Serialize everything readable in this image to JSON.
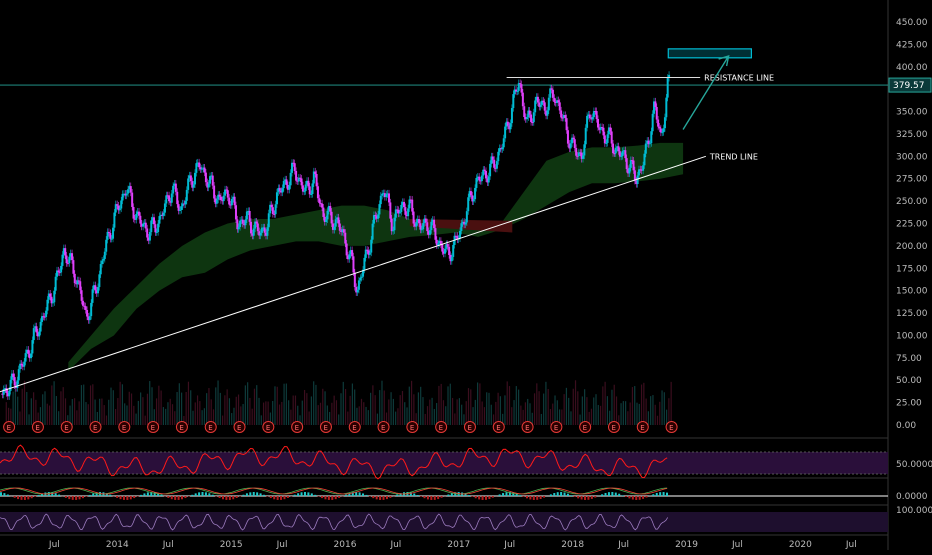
{
  "chart_data": {
    "type": "candlestick",
    "price_axis": {
      "ticks": [
        0,
        25,
        50,
        75,
        100,
        125,
        150,
        175,
        200,
        225,
        250,
        275,
        300,
        325,
        350,
        375,
        400,
        425,
        450
      ],
      "tick_labels": [
        "0.00",
        "25.00",
        "50.00",
        "75.00",
        "100.00",
        "125.00",
        "150.00",
        "175.00",
        "200.00",
        "225.00",
        "250.00",
        "275.00",
        "300.00",
        "325.00",
        "350.00",
        "375.00",
        "400.00",
        "425.00",
        "450.00"
      ],
      "last_price_label": "379.57",
      "last_price": 379.57
    },
    "time_axis": {
      "labels": [
        "Jul",
        "2014",
        "Jul",
        "2015",
        "Jul",
        "2016",
        "Jul",
        "2017",
        "Jul",
        "2018",
        "Jul",
        "2019",
        "Jul",
        "2020",
        "Jul"
      ],
      "start": 2013.0,
      "end": 2020.8
    },
    "price_series": [
      [
        2013.0,
        35
      ],
      [
        2013.1,
        45
      ],
      [
        2013.2,
        70
      ],
      [
        2013.3,
        100
      ],
      [
        2013.4,
        130
      ],
      [
        2013.5,
        165
      ],
      [
        2013.55,
        195
      ],
      [
        2013.65,
        170
      ],
      [
        2013.75,
        120
      ],
      [
        2013.83,
        150
      ],
      [
        2013.92,
        200
      ],
      [
        2014.02,
        240
      ],
      [
        2014.1,
        265
      ],
      [
        2014.2,
        230
      ],
      [
        2014.3,
        215
      ],
      [
        2014.4,
        230
      ],
      [
        2014.5,
        265
      ],
      [
        2014.58,
        240
      ],
      [
        2014.67,
        275
      ],
      [
        2014.75,
        290
      ],
      [
        2014.83,
        270
      ],
      [
        2014.92,
        250
      ],
      [
        2015.0,
        260
      ],
      [
        2015.08,
        225
      ],
      [
        2015.17,
        230
      ],
      [
        2015.25,
        215
      ],
      [
        2015.33,
        220
      ],
      [
        2015.42,
        255
      ],
      [
        2015.5,
        270
      ],
      [
        2015.58,
        285
      ],
      [
        2015.67,
        260
      ],
      [
        2015.75,
        275
      ],
      [
        2015.83,
        235
      ],
      [
        2015.92,
        230
      ],
      [
        2016.0,
        215
      ],
      [
        2016.08,
        180
      ],
      [
        2016.13,
        150
      ],
      [
        2016.2,
        185
      ],
      [
        2016.28,
        225
      ],
      [
        2016.36,
        265
      ],
      [
        2016.44,
        225
      ],
      [
        2016.52,
        245
      ],
      [
        2016.6,
        240
      ],
      [
        2016.68,
        220
      ],
      [
        2016.76,
        225
      ],
      [
        2016.84,
        205
      ],
      [
        2016.92,
        190
      ],
      [
        2017.0,
        205
      ],
      [
        2017.08,
        235
      ],
      [
        2017.17,
        270
      ],
      [
        2017.25,
        280
      ],
      [
        2017.33,
        290
      ],
      [
        2017.42,
        320
      ],
      [
        2017.5,
        360
      ],
      [
        2017.55,
        385
      ],
      [
        2017.62,
        335
      ],
      [
        2017.7,
        360
      ],
      [
        2017.78,
        355
      ],
      [
        2017.86,
        370
      ],
      [
        2017.94,
        340
      ],
      [
        2018.02,
        310
      ],
      [
        2018.1,
        300
      ],
      [
        2018.18,
        355
      ],
      [
        2018.26,
        330
      ],
      [
        2018.34,
        320
      ],
      [
        2018.42,
        305
      ],
      [
        2018.5,
        295
      ],
      [
        2018.58,
        275
      ],
      [
        2018.66,
        300
      ],
      [
        2018.74,
        355
      ],
      [
        2018.8,
        320
      ],
      [
        2018.86,
        380
      ]
    ],
    "cloud": [
      [
        2013.6,
        60,
        70
      ],
      [
        2013.8,
        85,
        100
      ],
      [
        2014.0,
        100,
        130
      ],
      [
        2014.2,
        130,
        155
      ],
      [
        2014.4,
        150,
        180
      ],
      [
        2014.6,
        165,
        200
      ],
      [
        2014.8,
        170,
        215
      ],
      [
        2015.0,
        185,
        225
      ],
      [
        2015.2,
        195,
        230
      ],
      [
        2015.4,
        200,
        230
      ],
      [
        2015.6,
        205,
        235
      ],
      [
        2015.8,
        205,
        240
      ],
      [
        2016.0,
        200,
        245
      ],
      [
        2016.2,
        200,
        245
      ],
      [
        2016.4,
        205,
        240
      ],
      [
        2016.6,
        210,
        230
      ],
      [
        2016.8,
        212,
        228
      ],
      [
        2017.0,
        215,
        228
      ],
      [
        2017.2,
        210,
        220
      ],
      [
        2017.4,
        218,
        225
      ],
      [
        2017.6,
        230,
        260
      ],
      [
        2017.8,
        245,
        295
      ],
      [
        2018.0,
        260,
        305
      ],
      [
        2018.2,
        270,
        310
      ],
      [
        2018.4,
        270,
        310
      ],
      [
        2018.6,
        272,
        312
      ],
      [
        2018.8,
        275,
        315
      ],
      [
        2019.0,
        280,
        315
      ]
    ],
    "trend_line": {
      "label": "TREND LINE",
      "from": [
        2012.95,
        35
      ],
      "to": [
        2019.2,
        300
      ]
    },
    "resistance_line": {
      "label": "RESISTANCE LINE",
      "from": [
        2017.45,
        388
      ],
      "to": [
        2019.15,
        388
      ]
    },
    "horizontal_level": 379.57,
    "target_zone": {
      "x0": 2018.87,
      "x1": 2019.6,
      "y0": 410,
      "y1": 420
    },
    "arrow": {
      "from": [
        2019.0,
        330
      ],
      "to": [
        2019.4,
        412
      ]
    },
    "volume_ticks": [
      0,
      25,
      50,
      75,
      100
    ],
    "earnings_marker": "E",
    "earnings_count": 24,
    "rsi": {
      "label": "50.0000"
    },
    "macd": {
      "label": "0.0000"
    },
    "stoch": {
      "label": "100.0000"
    }
  },
  "colors": {
    "background": "#000000",
    "bull": "#00bcd4",
    "bear": "#e040fb",
    "cloud_bull": "#0f3b12",
    "cloud_bear": "#4a1010",
    "trend": "#ffffff",
    "level": "#26a69a",
    "target": "#00bcd4",
    "arrow": "#26a69a",
    "rsi": "#ff1a1a",
    "rsi_band": "#2a0f3a",
    "earnings": "#e53935"
  }
}
